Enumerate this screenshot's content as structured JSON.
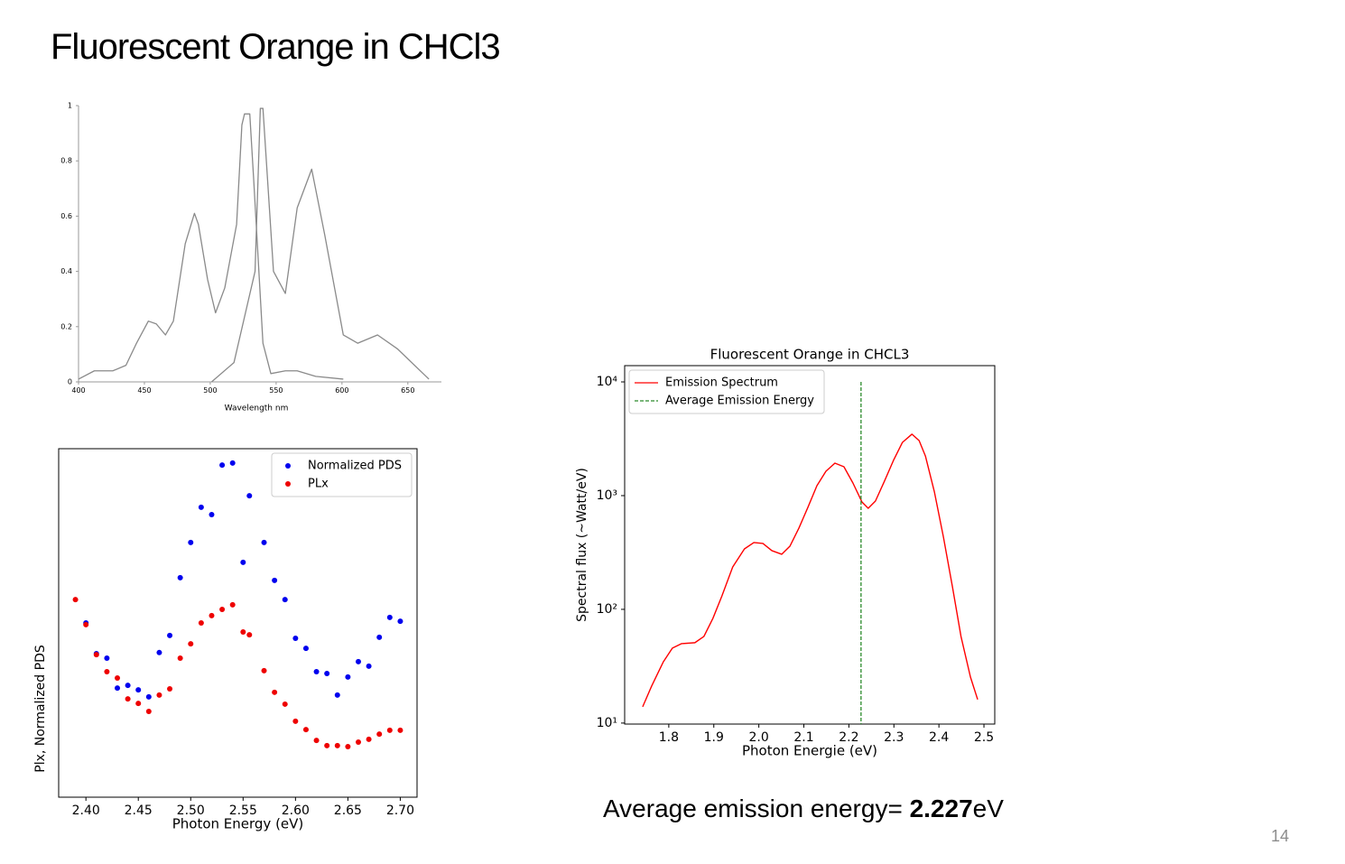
{
  "title": "Fluorescent Orange in CHCl3",
  "slide_number": "14",
  "caption": {
    "text": "Average emission energy= ",
    "value": "2.227",
    "unit": "eV"
  },
  "chart_data": [
    {
      "type": "line",
      "xlabel": "Wavelength nm",
      "xlim": [
        400,
        670
      ],
      "ylim": [
        0,
        1
      ],
      "xticks": [
        400,
        450,
        500,
        550,
        600,
        650
      ],
      "yticks": [
        0,
        0.2,
        0.4,
        0.6,
        0.8,
        1
      ],
      "series": [
        {
          "color": "#8a8a8a",
          "x": [
            400,
            412,
            426,
            436,
            444,
            453,
            459,
            466,
            472,
            481,
            488,
            491,
            498,
            504,
            511,
            520,
            524,
            526,
            530,
            533,
            540,
            546,
            557,
            566,
            580,
            601
          ],
          "values": [
            0.01,
            0.04,
            0.04,
            0.06,
            0.14,
            0.22,
            0.21,
            0.17,
            0.22,
            0.5,
            0.61,
            0.57,
            0.37,
            0.25,
            0.34,
            0.57,
            0.93,
            0.97,
            0.97,
            0.73,
            0.14,
            0.03,
            0.04,
            0.04,
            0.02,
            0.01
          ]
        },
        {
          "color": "#8a8a8a",
          "x": [
            501,
            518,
            534,
            538,
            540,
            548,
            557,
            566,
            577,
            587,
            601,
            612,
            627,
            642,
            666
          ],
          "values": [
            0,
            0.07,
            0.4,
            0.99,
            0.99,
            0.4,
            0.32,
            0.63,
            0.77,
            0.53,
            0.17,
            0.14,
            0.17,
            0.12,
            0.01
          ]
        }
      ]
    },
    {
      "type": "scatter",
      "xlabel": "Photon Energy (eV)",
      "ylabel": "Plx, Normalized PDS",
      "xlim": [
        2.374,
        2.716
      ],
      "ylim": [
        0,
        1
      ],
      "xticks": [
        {
          "value": 2.4,
          "label": "2.40"
        },
        2.45,
        {
          "value": 2.5,
          "label": "2.50"
        },
        2.55,
        {
          "value": 2.6,
          "label": "2.60"
        },
        2.65,
        {
          "value": 2.7,
          "label": "2.70"
        }
      ],
      "legend": "upper right",
      "series": [
        {
          "name": "Normalized PDS",
          "color": "#0000ee",
          "x": [
            2.4,
            2.41,
            2.42,
            2.43,
            2.44,
            2.45,
            2.46,
            2.47,
            2.48,
            2.49,
            2.5,
            2.51,
            2.52,
            2.53,
            2.54,
            2.55,
            2.556,
            2.57,
            2.58,
            2.59,
            2.6,
            2.61,
            2.62,
            2.63,
            2.64,
            2.65,
            2.66,
            2.67,
            2.68,
            2.69,
            2.7
          ],
          "values": [
            0.5,
            0.412,
            0.399,
            0.313,
            0.321,
            0.308,
            0.288,
            0.415,
            0.464,
            0.63,
            0.731,
            0.832,
            0.811,
            0.953,
            0.959,
            0.674,
            0.865,
            0.731,
            0.622,
            0.567,
            0.456,
            0.427,
            0.36,
            0.355,
            0.293,
            0.345,
            0.389,
            0.376,
            0.459,
            0.516,
            0.505
          ]
        },
        {
          "name": "PLx",
          "color": "#ee0000",
          "x": [
            2.39,
            2.4,
            2.41,
            2.42,
            2.43,
            2.44,
            2.45,
            2.46,
            2.47,
            2.48,
            2.49,
            2.5,
            2.51,
            2.52,
            2.53,
            2.54,
            2.55,
            2.556,
            2.57,
            2.58,
            2.59,
            2.6,
            2.61,
            2.62,
            2.63,
            2.64,
            2.65,
            2.66,
            2.67,
            2.68,
            2.69,
            2.7
          ],
          "values": [
            0.567,
            0.495,
            0.409,
            0.36,
            0.342,
            0.282,
            0.269,
            0.246,
            0.293,
            0.311,
            0.399,
            0.44,
            0.5,
            0.521,
            0.539,
            0.552,
            0.474,
            0.466,
            0.363,
            0.301,
            0.267,
            0.218,
            0.194,
            0.163,
            0.148,
            0.148,
            0.145,
            0.158,
            0.166,
            0.181,
            0.192,
            0.192
          ]
        }
      ]
    },
    {
      "type": "line",
      "title": "Fluorescent Orange in CHCL3",
      "xlabel": "Photon Energie (eV)",
      "ylabel": "Spectral flux (~Watt/eV)",
      "xlim": [
        1.702,
        2.524
      ],
      "ylim": [
        9.8,
        13900
      ],
      "yscale": "log",
      "xticks": [
        1.8,
        1.9,
        {
          "value": 2.0,
          "label": "2.0"
        },
        2.1,
        2.2,
        2.3,
        2.4,
        2.5
      ],
      "yticks": [
        {
          "value": 10,
          "label": "10¹"
        },
        {
          "value": 100,
          "label": "10²"
        },
        {
          "value": 1000,
          "label": "10³"
        },
        {
          "value": 10000,
          "label": "10⁴"
        }
      ],
      "legend": "upper left",
      "series": [
        {
          "name": "Emission Spectrum",
          "color": "#ff0000",
          "x": [
            1.742,
            1.762,
            1.788,
            1.808,
            1.828,
            1.858,
            1.878,
            1.898,
            1.918,
            1.942,
            1.968,
            1.989,
            2.009,
            2.029,
            2.051,
            2.069,
            2.089,
            2.109,
            2.129,
            2.149,
            2.169,
            2.189,
            2.209,
            2.229,
            2.243,
            2.259,
            2.279,
            2.299,
            2.319,
            2.34,
            2.356,
            2.37,
            2.39,
            2.41,
            2.43,
            2.449,
            2.47,
            2.486
          ],
          "values": [
            13.9,
            21.2,
            34.6,
            45.6,
            49.9,
            50.9,
            57.8,
            83.3,
            131,
            236,
            340,
            387,
            380,
            328,
            305,
            359,
            518,
            789,
            1222,
            1637,
            1930,
            1794,
            1291,
            880,
            774,
            896,
            1340,
            2040,
            2940,
            3470,
            3050,
            2230,
            1076,
            432,
            158,
            57.8,
            25.4,
            16.1
          ]
        }
      ],
      "vlines": [
        {
          "name": "Average Emission Energy",
          "x": 2.227,
          "color": "#2a8a2a"
        }
      ]
    }
  ]
}
